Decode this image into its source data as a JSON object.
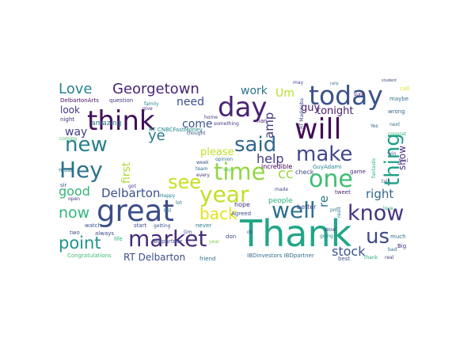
{
  "words": [
    {
      "text": "RT",
      "color": "#7fcd3e"
    },
    {
      "text": "Thank",
      "color": "#21a587"
    },
    {
      "text": "great",
      "color": "#3b4d8a"
    },
    {
      "text": "think",
      "color": "#430f5b"
    },
    {
      "text": "will",
      "color": "#440d55"
    },
    {
      "text": "day",
      "color": "#482374"
    },
    {
      "text": "today",
      "color": "#3b528b"
    },
    {
      "text": "one",
      "color": "#40bd72"
    },
    {
      "text": "time",
      "color": "#93d741"
    },
    {
      "text": "market",
      "color": "#472c7a"
    },
    {
      "text": "know",
      "color": "#453581"
    },
    {
      "text": "well",
      "color": "#2e6f8e"
    },
    {
      "text": "Hey",
      "color": "#2c728e"
    },
    {
      "text": "year",
      "color": "#c2df23"
    },
    {
      "text": "thing",
      "color": "#1fa088"
    },
    {
      "text": "new",
      "color": "#27808e"
    },
    {
      "text": "make",
      "color": "#3f4788"
    },
    {
      "text": "said",
      "color": "#31688e"
    },
    {
      "text": "us",
      "color": "#3e4a89"
    },
    {
      "text": "see",
      "color": "#c8e020"
    },
    {
      "text": "point",
      "color": "#1f958b"
    },
    {
      "text": "Georgetown",
      "color": "#482576"
    },
    {
      "text": "back",
      "color": "#e2e418"
    },
    {
      "text": "Love",
      "color": "#25858e"
    },
    {
      "text": "now",
      "color": "#33b67a"
    },
    {
      "text": "ye",
      "color": "#2a788e"
    },
    {
      "text": "good",
      "color": "#34b679"
    },
    {
      "text": "stock",
      "color": "#39568c"
    },
    {
      "text": "Delbarton",
      "color": "#3b518b"
    },
    {
      "text": "amp",
      "color": "#443983"
    },
    {
      "text": "help",
      "color": "#443a83"
    },
    {
      "text": "cc",
      "color": "#9bd93c"
    },
    {
      "text": "right",
      "color": "#31678e"
    },
    {
      "text": "re",
      "color": "#2a788e"
    },
    {
      "text": "work",
      "color": "#2b748e"
    },
    {
      "text": "Um",
      "color": "#b8de29"
    },
    {
      "text": "need",
      "color": "#3c4f8a"
    },
    {
      "text": "come",
      "color": "#3a538b"
    },
    {
      "text": "way",
      "color": "#424086"
    },
    {
      "text": "please",
      "color": "#c0df25"
    },
    {
      "text": "first",
      "color": "#a8db34"
    },
    {
      "text": "guy",
      "color": "#481a6c"
    },
    {
      "text": "tonight",
      "color": "#481b6d"
    },
    {
      "text": "show",
      "color": "#472f7d"
    },
    {
      "text": "look",
      "color": "#443983"
    },
    {
      "text": "RT Delbarton",
      "color": "#3d4e8a"
    },
    {
      "text": "amazing",
      "color": "#2d718e"
    },
    {
      "text": "RT CNBCFastMoney",
      "color": "#24878e"
    },
    {
      "text": "people",
      "color": "#2ab07f"
    },
    {
      "text": "hope",
      "color": "#453882"
    },
    {
      "text": "Agreed",
      "color": "#3b518b"
    },
    {
      "text": "incredible",
      "color": "#440154"
    },
    {
      "text": "better",
      "color": "#3e4c8a"
    },
    {
      "text": "check",
      "color": "#3f4889"
    },
    {
      "text": "GuyAdami",
      "color": "#24878e"
    },
    {
      "text": "game",
      "color": "#472a7a"
    },
    {
      "text": "tweet",
      "color": "#482878"
    },
    {
      "text": "Congratulations",
      "color": "#3fbc73"
    },
    {
      "text": "IBDinvestors IBDpartner",
      "color": "#2f6c8e"
    },
    {
      "text": "IBDpartner",
      "color": "#3d4d8a"
    },
    {
      "text": "RT MarkKoba",
      "color": "#3e4989"
    },
    {
      "text": "DelbartonArts",
      "color": "#471164"
    },
    {
      "text": "question",
      "color": "#463480"
    },
    {
      "text": "family",
      "color": "#25848e"
    },
    {
      "text": "night",
      "color": "#46337f"
    },
    {
      "text": "coming",
      "color": "#4ac16d"
    },
    {
      "text": "must",
      "color": "#2c738e"
    },
    {
      "text": "sir",
      "color": "#3b528b"
    },
    {
      "text": "two",
      "color": "#3b528b"
    },
    {
      "text": "watch",
      "color": "#39558c"
    },
    {
      "text": "always",
      "color": "#3d4d8a"
    },
    {
      "text": "start",
      "color": "#3e4c8a"
    },
    {
      "text": "getting",
      "color": "#38588c"
    },
    {
      "text": "life",
      "color": "#29af7f"
    },
    {
      "text": "friend",
      "color": "#2d708e"
    },
    {
      "text": "never",
      "color": "#2a788e"
    },
    {
      "text": "don",
      "color": "#3e4c8a"
    },
    {
      "text": "going",
      "color": "#26818e"
    },
    {
      "text": "best",
      "color": "#3b528b"
    },
    {
      "text": "much",
      "color": "#2c718e"
    },
    {
      "text": "Big",
      "color": "#472d7b"
    },
    {
      "text": "maybe",
      "color": "#2e6e8e"
    },
    {
      "text": "wrong",
      "color": "#31678e"
    },
    {
      "text": "fantastic",
      "color": "#26ad81"
    },
    {
      "text": "home",
      "color": "#433e85"
    },
    {
      "text": "something",
      "color": "#453882"
    },
    {
      "text": "man",
      "color": "#481769"
    },
    {
      "text": "thought",
      "color": "#3c4f8a"
    },
    {
      "text": "opinion",
      "color": "#2c728e"
    },
    {
      "text": "team",
      "color": "#2e6d8e"
    },
    {
      "text": "week",
      "color": "#3b528b"
    },
    {
      "text": "say",
      "color": "#4ec36b"
    },
    {
      "text": "made",
      "color": "#3f4889"
    },
    {
      "text": "sure",
      "color": "#481f70"
    },
    {
      "text": "may",
      "color": "#3f4788"
    },
    {
      "text": "give",
      "color": "#46307e"
    },
    {
      "text": "read",
      "color": "#2a788e"
    },
    {
      "text": "every",
      "color": "#453781"
    },
    {
      "text": "Wow",
      "color": "#3e4a89"
    },
    {
      "text": "year",
      "color": "#7fd34e"
    },
    {
      "text": "pm",
      "color": "#2a788e"
    },
    {
      "text": "open",
      "color": "#46337f"
    },
    {
      "text": "Happy",
      "color": "#277f8e"
    },
    {
      "text": "lot",
      "color": "#2e6f8e"
    },
    {
      "text": "tell",
      "color": "#2a788e"
    },
    {
      "text": "talk",
      "color": "#38588c"
    },
    {
      "text": "love",
      "color": "#24aa83"
    },
    {
      "text": "call",
      "color": "#dde318"
    },
    {
      "text": "win",
      "color": "#3b528b"
    },
    {
      "text": "feel",
      "color": "#46337f"
    },
    {
      "text": "bad",
      "color": "#2d708e"
    },
    {
      "text": "Yes",
      "color": "#32658e"
    },
    {
      "text": "next",
      "color": "#2a788e"
    },
    {
      "text": "student",
      "color": "#3e4a89"
    },
    {
      "text": "congrat",
      "color": "#2fb47c"
    },
    {
      "text": "real",
      "color": "#463480"
    },
    {
      "text": "thank",
      "color": "#25ab82"
    },
    {
      "text": "ok",
      "color": "#3b528b"
    },
    {
      "text": "rally",
      "color": "#2d708e"
    },
    {
      "text": "got",
      "color": "#443983"
    },
    {
      "text": "Gm",
      "color": "#3b528b"
    }
  ]
}
